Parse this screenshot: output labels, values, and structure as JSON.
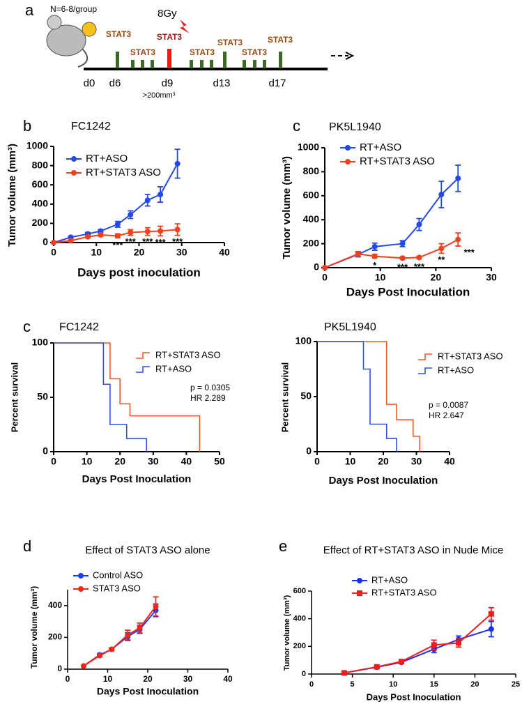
{
  "timeline": {
    "panel_label": "a",
    "group": "N=6-8/group",
    "dose": "8Gy",
    "treatments": [
      "STAT3",
      "STAT3",
      "STAT3",
      "STAT3",
      "STAT3",
      "STAT3",
      "STAT3"
    ],
    "days": [
      "d0",
      "d6",
      "d9",
      "d13",
      "d17"
    ],
    "note": ">200mm³"
  },
  "chart_data": [
    {
      "type": "line",
      "panel_label": "b",
      "title": "FC1242",
      "x_label": "Days post inoculation",
      "y_label": "Tumor volume (mm³)",
      "x": [
        0,
        4,
        8,
        11,
        15,
        18,
        22,
        25,
        29
      ],
      "xlim": [
        0,
        40
      ],
      "xticks": [
        0,
        10,
        20,
        30,
        40
      ],
      "ylim": [
        0,
        1000
      ],
      "yticks": [
        0,
        200,
        400,
        600,
        800,
        1000
      ],
      "legend": "upper left",
      "series": [
        {
          "name": "RT+ASO",
          "color": "#2449e6",
          "marker": "circle",
          "values": [
            0,
            55,
            90,
            120,
            190,
            290,
            440,
            500,
            820
          ],
          "errors": [
            0,
            10,
            15,
            15,
            30,
            40,
            60,
            80,
            150
          ]
        },
        {
          "name": "RT+STAT3 ASO",
          "color": "#f2401e",
          "marker": "circle",
          "values": [
            0,
            20,
            60,
            80,
            70,
            105,
            115,
            120,
            135
          ],
          "errors": [
            0,
            5,
            10,
            15,
            20,
            30,
            40,
            50,
            60
          ]
        }
      ],
      "significance": [
        null,
        null,
        null,
        null,
        "***",
        "***",
        "***",
        "***",
        "***"
      ]
    },
    {
      "type": "line",
      "panel_label": "c",
      "title": "PK5L1940",
      "x_label": "Days Post Inoculation",
      "y_label": "Tumor volume (mm³)",
      "x": [
        0,
        6,
        9,
        14,
        17,
        21,
        24
      ],
      "xlim": [
        0,
        30
      ],
      "xticks": [
        0,
        10,
        20,
        30
      ],
      "ylim": [
        0,
        1000
      ],
      "yticks": [
        0,
        200,
        400,
        600,
        800,
        1000
      ],
      "legend": "upper left",
      "series": [
        {
          "name": "RT+ASO",
          "color": "#2449e6",
          "marker": "circle",
          "values": [
            0,
            110,
            175,
            200,
            360,
            610,
            745
          ],
          "errors": [
            0,
            20,
            30,
            25,
            50,
            110,
            110
          ]
        },
        {
          "name": "RT+STAT3 ASO",
          "color": "#f2401e",
          "marker": "circle",
          "values": [
            0,
            115,
            95,
            80,
            85,
            160,
            235
          ],
          "errors": [
            0,
            20,
            15,
            10,
            10,
            40,
            55
          ]
        }
      ],
      "significance": [
        null,
        null,
        "*",
        "***",
        "***",
        "**",
        "***"
      ]
    },
    {
      "type": "step",
      "panel_label": "c",
      "title": "FC1242",
      "x_label": "Days Post Inoculation",
      "y_label": "Percent survival",
      "xlim": [
        0,
        50
      ],
      "xticks": [
        0,
        10,
        20,
        30,
        40,
        50
      ],
      "ylim": [
        0,
        100
      ],
      "yticks": [
        0,
        50,
        100
      ],
      "legend": "upper right",
      "series": [
        {
          "name": "RT+STAT3 ASO",
          "color": "#f05a28",
          "x": [
            0,
            17,
            20,
            23,
            44
          ],
          "values": [
            100,
            67,
            44,
            33,
            0
          ]
        },
        {
          "name": "RT+ASO",
          "color": "#3050e0",
          "x": [
            0,
            15,
            17,
            22,
            28
          ],
          "values": [
            100,
            62,
            25,
            12,
            0
          ]
        }
      ],
      "stats": [
        "p = 0.0305",
        "HR 2.289"
      ]
    },
    {
      "type": "step",
      "panel_label": null,
      "title": "PK5L1940",
      "x_label": "Days Post Inoculation",
      "y_label": "Percent survival",
      "xlim": [
        0,
        40
      ],
      "xticks": [
        0,
        10,
        20,
        30,
        40
      ],
      "ylim": [
        0,
        100
      ],
      "yticks": [
        0,
        50,
        100
      ],
      "legend": "upper right",
      "series": [
        {
          "name": "RT+STAT3 ASO",
          "color": "#f05a28",
          "x": [
            0,
            21,
            24,
            29,
            31
          ],
          "values": [
            100,
            43,
            29,
            14,
            0
          ]
        },
        {
          "name": "RT+ASO",
          "color": "#3050e0",
          "x": [
            0,
            14,
            16,
            21,
            24
          ],
          "values": [
            100,
            75,
            25,
            12,
            0
          ]
        }
      ],
      "stats": [
        "p = 0.0087",
        "HR 2.647"
      ]
    },
    {
      "type": "line",
      "panel_label": "d",
      "title": "Effect of STAT3 ASO alone",
      "x_label": "Days Post Inoculation",
      "y_label": "Tumor volume (mm³)",
      "x": [
        4,
        8,
        11,
        15,
        18,
        22
      ],
      "xlim": [
        0,
        40
      ],
      "xticks": [
        0,
        10,
        20,
        30,
        40
      ],
      "ylim": [
        0,
        500
      ],
      "yticks": [
        0,
        200,
        400
      ],
      "legend": "upper left",
      "series": [
        {
          "name": "Control ASO",
          "color": "#1c3cf0",
          "marker": "circle",
          "values": [
            20,
            90,
            125,
            205,
            250,
            370
          ],
          "errors": [
            3,
            8,
            8,
            25,
            25,
            40
          ]
        },
        {
          "name": "STAT3 ASO",
          "color": "#f02818",
          "marker": "circle",
          "values": [
            20,
            85,
            125,
            215,
            260,
            395
          ],
          "errors": [
            3,
            8,
            8,
            30,
            30,
            60
          ]
        }
      ]
    },
    {
      "type": "line",
      "panel_label": "e",
      "title": "Effect of RT+STAT3 ASO in Nude Mice",
      "x_label": "Days Post Inoculation",
      "y_label": "Tumor volume (mm³)",
      "x": [
        4,
        8,
        11,
        15,
        18,
        22
      ],
      "xlim": [
        0,
        25
      ],
      "xticks": [
        0,
        5,
        10,
        15,
        20,
        25
      ],
      "ylim": [
        0,
        600
      ],
      "yticks": [
        0,
        200,
        400,
        600
      ],
      "legend": "upper left",
      "series": [
        {
          "name": "RT+ASO",
          "color": "#1c2ff0",
          "marker": "circle",
          "values": [
            8,
            50,
            85,
            180,
            250,
            325
          ],
          "errors": [
            2,
            5,
            8,
            25,
            25,
            55
          ]
        },
        {
          "name": "RT+STAT3 ASO",
          "color": "#f01c1c",
          "marker": "square",
          "values": [
            8,
            52,
            90,
            210,
            225,
            435
          ],
          "errors": [
            2,
            5,
            8,
            35,
            30,
            45
          ]
        }
      ]
    }
  ]
}
